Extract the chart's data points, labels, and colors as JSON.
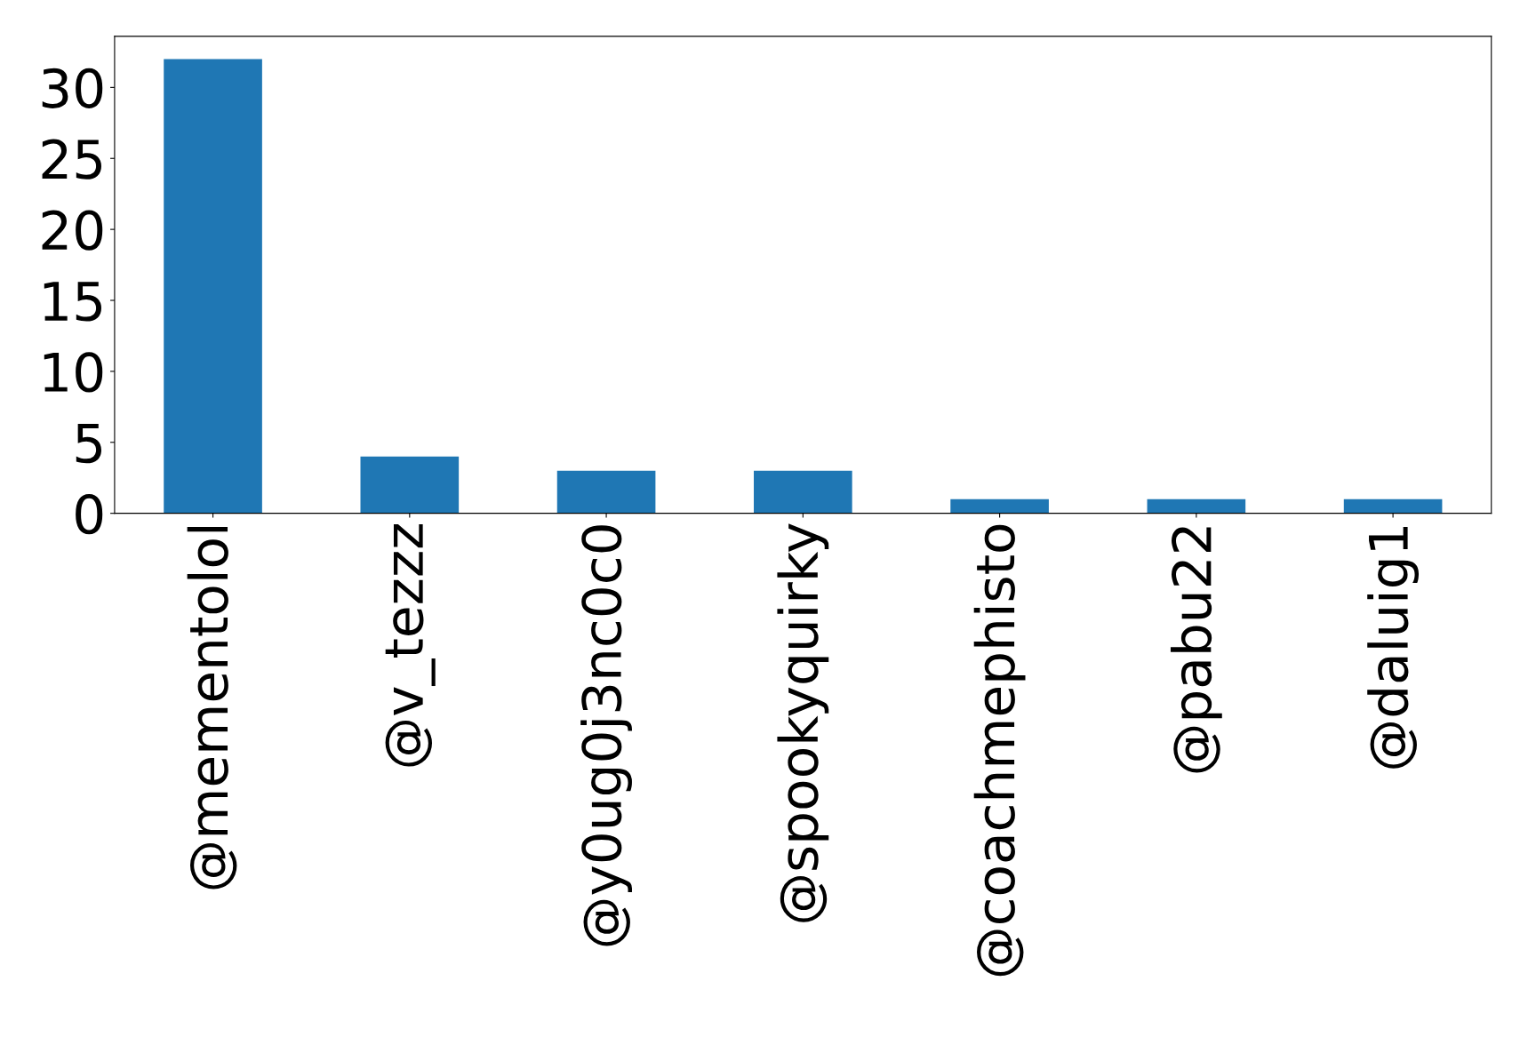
{
  "chart_data": {
    "type": "bar",
    "categories": [
      "@mementolol",
      "@v_tezzz",
      "@y0ug0j3nc0c0",
      "@spookyquirky",
      "@coachmephisto",
      "@pabu22",
      "@daluig1"
    ],
    "values": [
      32,
      4,
      3,
      3,
      1,
      1,
      1
    ],
    "color": "#1f77b4",
    "ylim": [
      0,
      33.6
    ],
    "yticks": [
      0,
      5,
      10,
      15,
      20,
      25,
      30
    ],
    "grid": false,
    "legend": false
  }
}
